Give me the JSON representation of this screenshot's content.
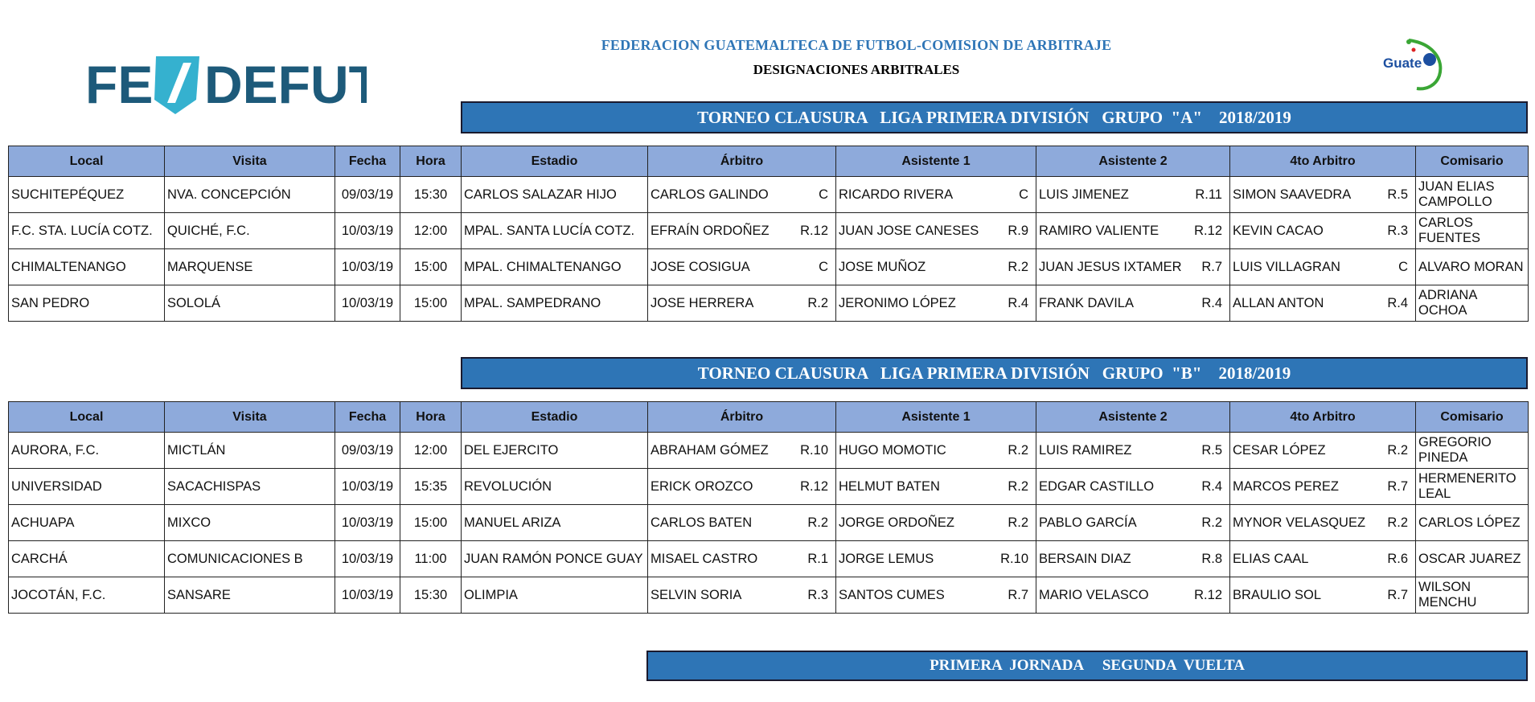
{
  "header": {
    "org_title": "FEDERACION GUATEMALTECA DE FUTBOL-COMISION DE ARBITRAJE",
    "subtitle": "DESIGNACIONES ARBITRALES",
    "logo_left": "FEDEFUT",
    "logo_right": "fedefut Guate"
  },
  "colors": {
    "title_bar": "#2e75b6",
    "header_row": "#8eaadb",
    "org_title": "#2e75b6"
  },
  "columns": [
    "Local",
    "Visita",
    "Fecha",
    "Hora",
    "Estadio",
    "Árbitro",
    "Asistente 1",
    "Asistente 2",
    "4to Arbitro",
    "Comisario"
  ],
  "group_a": {
    "title": "TORNEO CLAUSURA   LIGA PRIMERA DIVISIÓN   GRUPO  \"A\"    2018/2019",
    "rows": [
      {
        "local": "SUCHITEPÉQUEZ",
        "visita": "NVA. CONCEPCIÓN",
        "fecha": "09/03/19",
        "hora": "15:30",
        "estadio": "CARLOS SALAZAR HIJO",
        "arbitro": "CARLOS GALINDO",
        "arbitro_code": "C",
        "asist1": "RICARDO RIVERA",
        "asist1_code": "C",
        "asist2": "LUIS JIMENEZ",
        "asist2_code": "R.11",
        "cuarto": "SIMON SAAVEDRA",
        "cuarto_code": "R.5",
        "comisario": "JUAN ELIAS CAMPOLLO"
      },
      {
        "local": "F.C. STA. LUCÍA COTZ.",
        "visita": "QUICHÉ, F.C.",
        "fecha": "10/03/19",
        "hora": "12:00",
        "estadio": "MPAL. SANTA LUCÍA COTZ.",
        "arbitro": "EFRAÍN ORDOÑEZ",
        "arbitro_code": "R.12",
        "asist1": "JUAN JOSE CANESES",
        "asist1_code": "R.9",
        "asist2": "RAMIRO VALIENTE",
        "asist2_code": "R.12",
        "cuarto": "KEVIN CACAO",
        "cuarto_code": "R.3",
        "comisario": "CARLOS FUENTES"
      },
      {
        "local": "CHIMALTENANGO",
        "visita": "MARQUENSE",
        "fecha": "10/03/19",
        "hora": "15:00",
        "estadio": "MPAL. CHIMALTENANGO",
        "arbitro": "JOSE COSIGUA",
        "arbitro_code": "C",
        "asist1": "JOSE MUÑOZ",
        "asist1_code": "R.2",
        "asist2": "JUAN JESUS IXTAMER",
        "asist2_code": "R.7",
        "cuarto": "LUIS VILLAGRAN",
        "cuarto_code": "C",
        "comisario": "ALVARO MORAN"
      },
      {
        "local": "SAN PEDRO",
        "visita": "SOLOLÁ",
        "fecha": "10/03/19",
        "hora": "15:00",
        "estadio": "MPAL. SAMPEDRANO",
        "arbitro": "JOSE HERRERA",
        "arbitro_code": "R.2",
        "asist1": "JERONIMO LÓPEZ",
        "asist1_code": "R.4",
        "asist2": "FRANK DAVILA",
        "asist2_code": "R.4",
        "cuarto": "ALLAN ANTON",
        "cuarto_code": "R.4",
        "comisario": "ADRIANA OCHOA"
      }
    ]
  },
  "group_b": {
    "title": "TORNEO CLAUSURA   LIGA PRIMERA DIVISIÓN   GRUPO  \"B\"    2018/2019",
    "rows": [
      {
        "local": "AURORA, F.C.",
        "visita": "MICTLÁN",
        "fecha": "09/03/19",
        "hora": "12:00",
        "estadio": "DEL EJERCITO",
        "arbitro": "ABRAHAM GÓMEZ",
        "arbitro_code": "R.10",
        "asist1": "HUGO MOMOTIC",
        "asist1_code": "R.2",
        "asist2": "LUIS RAMIREZ",
        "asist2_code": "R.5",
        "cuarto": "CESAR LÓPEZ",
        "cuarto_code": "R.2",
        "comisario": "GREGORIO PINEDA"
      },
      {
        "local": "UNIVERSIDAD",
        "visita": "SACACHISPAS",
        "fecha": "10/03/19",
        "hora": "15:35",
        "estadio": "REVOLUCIÓN",
        "arbitro": "ERICK OROZCO",
        "arbitro_code": "R.12",
        "asist1": "HELMUT BATEN",
        "asist1_code": "R.2",
        "asist2": "EDGAR CASTILLO",
        "asist2_code": "R.4",
        "cuarto": "MARCOS PEREZ",
        "cuarto_code": "R.7",
        "comisario": "HERMENERITO LEAL"
      },
      {
        "local": "ACHUAPA",
        "visita": "MIXCO",
        "fecha": "10/03/19",
        "hora": "15:00",
        "estadio": "MANUEL ARIZA",
        "arbitro": "CARLOS BATEN",
        "arbitro_code": "R.2",
        "asist1": "JORGE ORDOÑEZ",
        "asist1_code": "R.2",
        "asist2": "PABLO GARCÍA",
        "asist2_code": "R.2",
        "cuarto": "MYNOR VELASQUEZ",
        "cuarto_code": "R.2",
        "comisario": "CARLOS LÓPEZ"
      },
      {
        "local": "CARCHÁ",
        "visita": "COMUNICACIONES B",
        "fecha": "10/03/19",
        "hora": "11:00",
        "estadio": "JUAN RAMÓN PONCE GUAY",
        "arbitro": "MISAEL CASTRO",
        "arbitro_code": "R.1",
        "asist1": "JORGE LEMUS",
        "asist1_code": "R.10",
        "asist2": "BERSAIN DIAZ",
        "asist2_code": "R.8",
        "cuarto": "ELIAS CAAL",
        "cuarto_code": "R.6",
        "comisario": "OSCAR JUAREZ"
      },
      {
        "local": "JOCOTÁN, F.C.",
        "visita": "SANSARE",
        "fecha": "10/03/19",
        "hora": "15:30",
        "estadio": "OLIMPIA",
        "arbitro": "SELVIN SORIA",
        "arbitro_code": "R.3",
        "asist1": "SANTOS CUMES",
        "asist1_code": "R.7",
        "asist2": "MARIO VELASCO",
        "asist2_code": "R.12",
        "cuarto": "BRAULIO SOL",
        "cuarto_code": "R.7",
        "comisario": "WILSON MENCHU"
      }
    ]
  },
  "footer_bar": {
    "title": "PRIMERA  JORNADA     SEGUNDA  VUELTA"
  }
}
